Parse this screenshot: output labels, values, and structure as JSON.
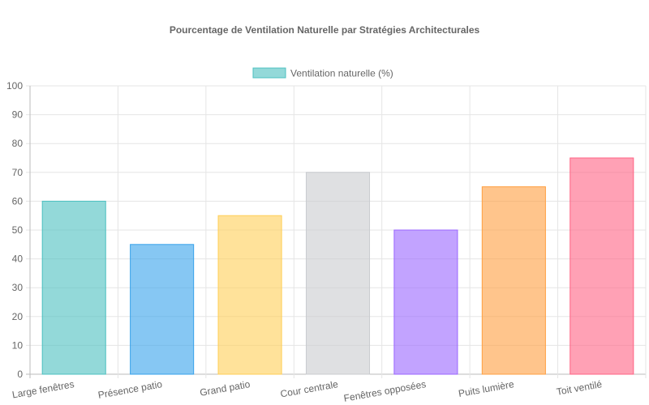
{
  "chart_data": {
    "type": "bar",
    "title": "Pourcentage de Ventilation Naturelle par Stratégies Architecturales",
    "categories": [
      "Large fenêtres",
      "Présence patio",
      "Grand patio",
      "Cour centrale",
      "Fenêtres opposées",
      "Puits lumière",
      "Toit ventilé"
    ],
    "series": [
      {
        "name": "Ventilation naturelle (%)",
        "values": [
          60,
          45,
          55,
          70,
          50,
          65,
          75
        ]
      }
    ],
    "colors": [
      "#4bc0c0",
      "#36a2eb",
      "#ffce56",
      "#c9cbcf",
      "#9966ff",
      "#ff9f40",
      "#ff6384"
    ],
    "ylim": [
      0,
      100
    ],
    "yticks": [
      0,
      10,
      20,
      30,
      40,
      50,
      60,
      70,
      80,
      90,
      100
    ],
    "grid": true,
    "legend_position": "top"
  }
}
